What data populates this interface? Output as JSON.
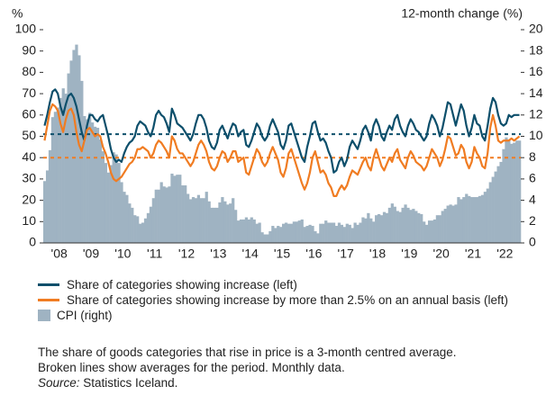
{
  "chart_data": {
    "type": "combo",
    "ylabel": "%",
    "y2label": "12-month change (%)",
    "categories": [
      null,
      null,
      null,
      null,
      null,
      null,
      "'08",
      null,
      null,
      null,
      null,
      null,
      null,
      null,
      null,
      null,
      null,
      null,
      "'09",
      null,
      null,
      null,
      null,
      null,
      null,
      null,
      null,
      null,
      null,
      null,
      "'10",
      null,
      null,
      null,
      null,
      null,
      null,
      null,
      null,
      null,
      null,
      null,
      "'11",
      null,
      null,
      null,
      null,
      null,
      null,
      null,
      null,
      null,
      null,
      null,
      "'12",
      null,
      null,
      null,
      null,
      null,
      null,
      null,
      null,
      null,
      null,
      null,
      "'13",
      null,
      null,
      null,
      null,
      null,
      null,
      null,
      null,
      null,
      null,
      null,
      "'14",
      null,
      null,
      null,
      null,
      null,
      null,
      null,
      null,
      null,
      null,
      null,
      "'15",
      null,
      null,
      null,
      null,
      null,
      null,
      null,
      null,
      null,
      null,
      null,
      "'16",
      null,
      null,
      null,
      null,
      null,
      null,
      null,
      null,
      null,
      null,
      null,
      "'17",
      null,
      null,
      null,
      null,
      null,
      null,
      null,
      null,
      null,
      null,
      null,
      "'18",
      null,
      null,
      null,
      null,
      null,
      null,
      null,
      null,
      null,
      null,
      null,
      "'19",
      null,
      null,
      null,
      null,
      null,
      null,
      null,
      null,
      null,
      null,
      null,
      "'20",
      null,
      null,
      null,
      null,
      null,
      null,
      null,
      null,
      null,
      null,
      null,
      "'21",
      null,
      null,
      null,
      null,
      null,
      null,
      null,
      null,
      null,
      null,
      null,
      "'22",
      null,
      null,
      null,
      null,
      null
    ],
    "series": [
      {
        "name": "Share of categories showing increase (left)",
        "type": "line",
        "axis": "y",
        "color": "#0d4f6b",
        "values": [
          55,
          60,
          66,
          71,
          72,
          70,
          64,
          60,
          65,
          69,
          70,
          68,
          64,
          58,
          52,
          48,
          55,
          60,
          60,
          58,
          57,
          59,
          60,
          55,
          50,
          44,
          40,
          38,
          39,
          38,
          42,
          45,
          47,
          48,
          50,
          55,
          57,
          56,
          55,
          52,
          50,
          54,
          60,
          62,
          60,
          59,
          56,
          52,
          63,
          60,
          56,
          55,
          54,
          52,
          50,
          48,
          51,
          56,
          60,
          60,
          58,
          54,
          48,
          45,
          44,
          47,
          53,
          55,
          52,
          49,
          53,
          56,
          55,
          50,
          52,
          53,
          46,
          45,
          48,
          52,
          56,
          54,
          50,
          48,
          50,
          55,
          58,
          55,
          52,
          46,
          44,
          48,
          55,
          56,
          52,
          48,
          44,
          40,
          38,
          45,
          50,
          56,
          57,
          52,
          48,
          49,
          47,
          43,
          40,
          33,
          34,
          38,
          40,
          36,
          39,
          45,
          48,
          46,
          44,
          48,
          53,
          55,
          52,
          48,
          55,
          58,
          55,
          50,
          48,
          52,
          55,
          53,
          58,
          60,
          55,
          52,
          50,
          55,
          58,
          56,
          53,
          52,
          50,
          48,
          50,
          56,
          60,
          58,
          55,
          50,
          54,
          60,
          66,
          65,
          60,
          55,
          60,
          65,
          62,
          55,
          50,
          54,
          60,
          56,
          55,
          50,
          48,
          55,
          63,
          68,
          66,
          60,
          56,
          55,
          56,
          60,
          59,
          60,
          60,
          60
        ]
      },
      {
        "name": "Share of categories showing increase by more than 2.5% on an annual basis (left)",
        "type": "line",
        "axis": "y",
        "color": "#f07c22",
        "values": [
          48,
          55,
          62,
          65,
          64,
          62,
          56,
          52,
          58,
          62,
          63,
          60,
          52,
          46,
          43,
          48,
          53,
          54,
          52,
          50,
          51,
          50,
          45,
          42,
          38,
          33,
          30,
          29,
          30,
          31,
          33,
          35,
          37,
          38,
          40,
          44,
          44,
          45,
          44,
          43,
          40,
          42,
          46,
          48,
          47,
          45,
          43,
          40,
          50,
          48,
          44,
          42,
          42,
          40,
          38,
          36,
          38,
          42,
          46,
          48,
          46,
          43,
          38,
          35,
          34,
          36,
          40,
          43,
          42,
          38,
          40,
          43,
          43,
          38,
          39,
          40,
          33,
          32,
          36,
          40,
          44,
          42,
          38,
          36,
          38,
          42,
          45,
          42,
          39,
          33,
          31,
          35,
          42,
          44,
          40,
          36,
          32,
          28,
          25,
          28,
          33,
          40,
          43,
          38,
          33,
          34,
          32,
          28,
          26,
          22,
          22,
          25,
          27,
          25,
          27,
          31,
          34,
          33,
          32,
          35,
          38,
          40,
          36,
          34,
          40,
          44,
          40,
          36,
          34,
          37,
          40,
          38,
          42,
          44,
          39,
          37,
          35,
          40,
          43,
          41,
          38,
          37,
          36,
          34,
          36,
          40,
          44,
          42,
          40,
          36,
          39,
          44,
          50,
          49,
          45,
          41,
          42,
          46,
          44,
          38,
          35,
          38,
          45,
          42,
          40,
          36,
          35,
          42,
          54,
          60,
          55,
          48,
          47,
          48,
          48,
          48,
          49,
          48,
          49,
          50
        ]
      },
      {
        "name": "CPI (right)",
        "type": "bar",
        "axis": "y2",
        "color": "#9fb3c2",
        "values": [
          5.8,
          6.8,
          8.7,
          11.8,
          12.3,
          12.7,
          13.6,
          14.5,
          14.0,
          15.9,
          17.1,
          18.1,
          18.6,
          17.6,
          15.2,
          11.9,
          11.6,
          12.2,
          11.3,
          10.9,
          10.8,
          9.7,
          8.6,
          7.5,
          6.6,
          7.3,
          8.5,
          8.3,
          7.5,
          5.7,
          4.8,
          4.5,
          3.7,
          3.3,
          2.6,
          2.5,
          1.8,
          1.9,
          2.3,
          2.8,
          3.4,
          4.2,
          5.0,
          5.0,
          5.7,
          5.3,
          5.2,
          5.3,
          6.5,
          6.3,
          6.4,
          6.4,
          5.4,
          5.4,
          4.6,
          4.1,
          4.3,
          4.2,
          4.5,
          4.2,
          4.2,
          4.8,
          3.9,
          3.3,
          3.3,
          3.3,
          3.8,
          4.3,
          3.9,
          3.6,
          3.7,
          4.2,
          3.1,
          2.1,
          2.2,
          2.2,
          2.4,
          2.2,
          2.4,
          2.2,
          1.8,
          1.9,
          1.0,
          0.8,
          0.8,
          1.1,
          1.6,
          1.4,
          1.6,
          1.5,
          1.8,
          1.9,
          1.8,
          1.8,
          2.0,
          2.0,
          2.1,
          2.2,
          1.5,
          1.6,
          1.7,
          1.6,
          1.1,
          0.9,
          1.8,
          1.8,
          2.1,
          1.9,
          1.9,
          1.9,
          1.6,
          1.9,
          1.7,
          1.5,
          1.8,
          1.7,
          1.4,
          1.9,
          1.7,
          1.9,
          2.4,
          2.3,
          2.8,
          2.3,
          2.0,
          2.6,
          2.7,
          2.6,
          2.9,
          2.8,
          3.3,
          3.7,
          3.4,
          3.0,
          2.9,
          3.3,
          3.6,
          3.3,
          3.1,
          3.2,
          3.0,
          2.8,
          2.7,
          2.0,
          1.7,
          2.1,
          2.1,
          2.2,
          2.6,
          2.6,
          3.0,
          3.2,
          3.5,
          3.6,
          3.5,
          3.6,
          4.3,
          4.1,
          4.3,
          4.6,
          4.4,
          4.3,
          4.3,
          4.3,
          4.4,
          4.5,
          4.8,
          5.1,
          5.7,
          6.2,
          6.7,
          7.2,
          7.6,
          8.8,
          9.9,
          9.7,
          9.3,
          9.4,
          9.6,
          9.6
        ]
      }
    ],
    "reference_lines": [
      {
        "value": 51,
        "axis": "y",
        "color": "#0d4f6b",
        "dashed": true
      },
      {
        "value": 40,
        "axis": "y",
        "color": "#f07c22",
        "dashed": true
      }
    ],
    "ylim": [
      0,
      100
    ],
    "yticks": [
      0,
      10,
      20,
      30,
      40,
      50,
      60,
      70,
      80,
      90,
      100
    ],
    "y2lim": [
      0,
      20
    ],
    "y2ticks": [
      0,
      2,
      4,
      6,
      8,
      10,
      12,
      14,
      16,
      18,
      20
    ],
    "grid": false,
    "notes": [
      "The share of goods categories that rise in price is a 3-month centred average.",
      "Broken lines show averages for the period. Monthly data."
    ],
    "source": {
      "label": "Source:",
      "text": "Statistics Iceland."
    }
  }
}
